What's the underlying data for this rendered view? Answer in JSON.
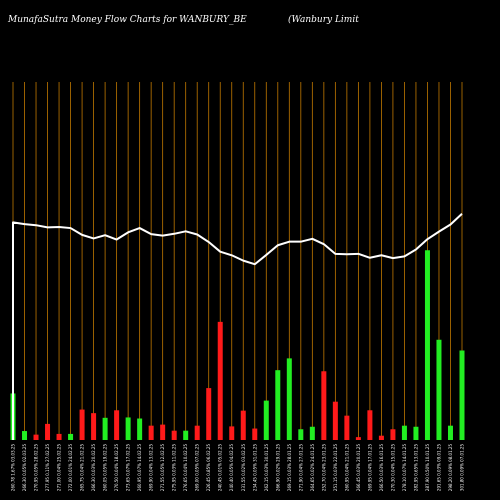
{
  "chart_data": {
    "type": "bar",
    "title_left": "MunafaSutra  Money Flow  Charts for WANBURY_BE",
    "title_right": "(Wanbury Limit",
    "ylim": [
      0,
      100
    ],
    "colors": {
      "background": "#000000",
      "grid": "#c07800",
      "up": "#22ee22",
      "down": "#ff1a1a",
      "line": "#ffffff",
      "text": "#ffffff"
    },
    "categories": [
      "260.78 1.67% 03.03.25",
      "266.30 0.05% 02.03.25",
      "270.95 0.05% 28.02.25",
      "277.95 0.11% 27.02.25",
      "271.00 0.04% 25.02.25",
      "272.00 0.01% 24.02.25",
      "265.75 0.04% 21.02.25",
      "266.30 0.03% 20.02.25",
      "260.05 0.05% 19.02.25",
      "270.50 0.04% 18.02.25",
      "273.65 0.07% 17.02.25",
      "260.95 0.07% 14.02.25",
      "269.90 0.04% 13.02.25",
      "271.55 0.05% 12.02.25",
      "275.95 0.03% 11.02.25",
      "276.65 0.04% 10.02.25",
      "269.00 0.05% 07.02.25",
      "226.45 0.85% 06.02.25",
      "240.45 0.01% 05.02.25",
      "240.40 0.05% 04.02.25",
      "231.55 0.02% 03.02.25",
      "234.45 0.05% 31.01.25",
      "262.15 0.03% 30.01.25",
      "266.90 0.02% 29.01.25",
      "269.15 0.03% 28.01.25",
      "271.90 0.04% 27.01.25",
      "264.65 0.02% 24.01.25",
      "252.70 0.04% 23.01.25",
      "251.15 0.03% 22.01.25",
      "260.95 0.04% 21.01.25",
      "266.45 0.03% 20.01.25",
      "269.95 0.04% 17.01.25",
      "266.50 0.03% 16.01.25",
      "270.30 0.04% 15.01.25",
      "278.10 0.07% 14.01.25",
      "282.95 0.65% 13.01.25",
      "287.90 0.50% 10.01.25",
      "291.65 0.03% 09.01.25",
      "298.20 0.09% 08.01.25",
      "301.80 0.09% 07.01.25"
    ],
    "bars": [
      {
        "value": 13,
        "direction": "up"
      },
      {
        "value": 2.5,
        "direction": "up"
      },
      {
        "value": 1.5,
        "direction": "down"
      },
      {
        "value": 4.5,
        "direction": "down"
      },
      {
        "value": 1.7,
        "direction": "down"
      },
      {
        "value": 1.7,
        "direction": "up"
      },
      {
        "value": 8.5,
        "direction": "down"
      },
      {
        "value": 7.5,
        "direction": "down"
      },
      {
        "value": 6.2,
        "direction": "up"
      },
      {
        "value": 8.3,
        "direction": "down"
      },
      {
        "value": 6.3,
        "direction": "up"
      },
      {
        "value": 6,
        "direction": "up"
      },
      {
        "value": 4,
        "direction": "down"
      },
      {
        "value": 4.3,
        "direction": "down"
      },
      {
        "value": 2.6,
        "direction": "down"
      },
      {
        "value": 2.6,
        "direction": "up"
      },
      {
        "value": 4,
        "direction": "down"
      },
      {
        "value": 14.5,
        "direction": "down"
      },
      {
        "value": 33,
        "direction": "down"
      },
      {
        "value": 3.8,
        "direction": "down"
      },
      {
        "value": 8.2,
        "direction": "down"
      },
      {
        "value": 3.2,
        "direction": "down"
      },
      {
        "value": 11,
        "direction": "up"
      },
      {
        "value": 19.5,
        "direction": "up"
      },
      {
        "value": 22.8,
        "direction": "up"
      },
      {
        "value": 3,
        "direction": "up"
      },
      {
        "value": 3.7,
        "direction": "up"
      },
      {
        "value": 19.2,
        "direction": "down"
      },
      {
        "value": 10.7,
        "direction": "down"
      },
      {
        "value": 6.8,
        "direction": "down"
      },
      {
        "value": 0.8,
        "direction": "down"
      },
      {
        "value": 8.3,
        "direction": "down"
      },
      {
        "value": 1.2,
        "direction": "down"
      },
      {
        "value": 3,
        "direction": "down"
      },
      {
        "value": 4,
        "direction": "up"
      },
      {
        "value": 3.7,
        "direction": "up"
      },
      {
        "value": 53,
        "direction": "up"
      },
      {
        "value": 28,
        "direction": "up"
      },
      {
        "value": 4,
        "direction": "up"
      },
      {
        "value": 25,
        "direction": "up"
      }
    ],
    "line": [
      60.8,
      60.3,
      60.0,
      59.4,
      59.5,
      59.2,
      57.3,
      56.3,
      57.2,
      56.0,
      58.0,
      59.2,
      57.5,
      57.1,
      57.6,
      58.3,
      57.4,
      55.3,
      52.6,
      51.6,
      50.1,
      49.1,
      51.7,
      54.4,
      55.4,
      55.4,
      56.2,
      54.7,
      52.0,
      51.9,
      52.0,
      50.9,
      51.6,
      50.8,
      51.3,
      53.2,
      56.1,
      58.2,
      60.2,
      63.2
    ]
  }
}
